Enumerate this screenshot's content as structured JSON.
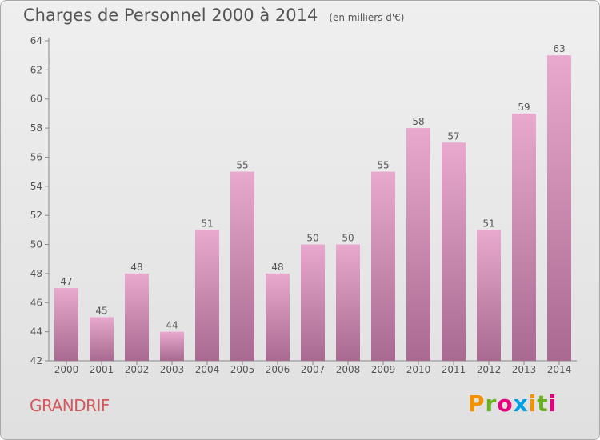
{
  "title": "Charges de Personnel 2000 à 2014",
  "subtitle": "(en milliers d'€)",
  "commune": "GRANDRIF",
  "logo": {
    "text": "Proxiti",
    "colors": [
      "#f39200",
      "#6ab023",
      "#e6007e",
      "#009fe3",
      "#f39200",
      "#6ab023",
      "#e6007e"
    ]
  },
  "colors": {
    "bar_top": "#e9a9cf",
    "bar_bottom": "#a86a90",
    "text": "#555555",
    "axis": "#888888"
  },
  "chart_data": {
    "type": "bar",
    "categories": [
      "2000",
      "2001",
      "2002",
      "2003",
      "2004",
      "2005",
      "2006",
      "2007",
      "2008",
      "2009",
      "2010",
      "2011",
      "2012",
      "2013",
      "2014"
    ],
    "values": [
      47,
      45,
      48,
      44,
      51,
      55,
      48,
      50,
      50,
      55,
      58,
      57,
      51,
      59,
      63
    ],
    "title": "Charges de Personnel 2000 à 2014",
    "ylim": [
      42,
      64
    ],
    "yticks": [
      42,
      44,
      46,
      48,
      50,
      52,
      54,
      56,
      58,
      60,
      62,
      64
    ],
    "grid": false,
    "data_labels": true
  }
}
